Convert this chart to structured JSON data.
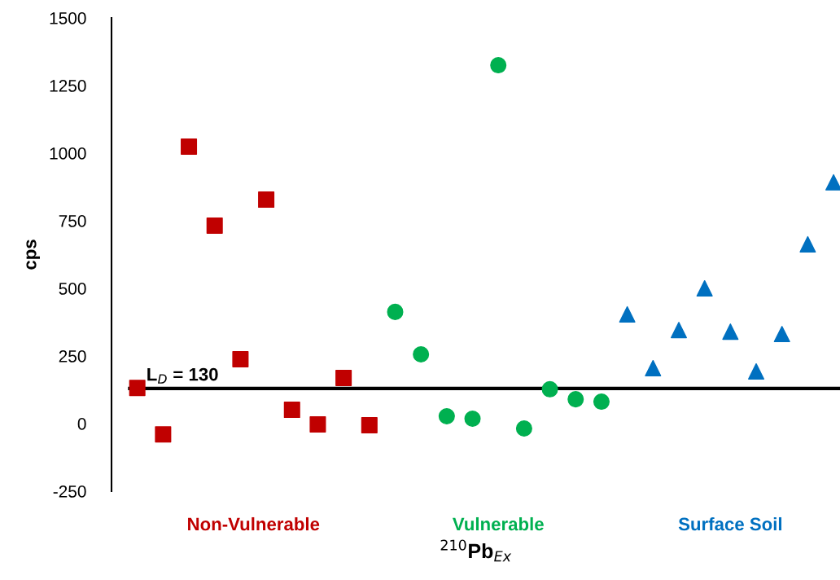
{
  "chart_data": {
    "type": "scatter",
    "xlabel": "$^{210}$Pb$_{Ex}$",
    "ylabel": "cps",
    "categories": [
      null,
      null,
      null,
      null,
      null,
      null,
      null,
      null,
      null,
      null,
      null,
      null,
      null,
      null,
      null,
      null,
      null,
      null,
      null,
      null,
      null,
      null,
      null,
      null,
      null,
      null,
      null,
      null
    ],
    "series": [
      {
        "name": "Non-Vulnerable",
        "color": "#c00000",
        "marker": "square",
        "values": [
          132,
          -40,
          1024,
          732,
          238,
          828,
          51,
          -3,
          169,
          -6,
          null,
          null,
          null,
          null,
          null,
          null,
          null,
          null,
          null,
          null,
          null,
          null,
          null,
          null,
          null,
          null,
          null,
          null
        ]
      },
      {
        "name": "Vulnerable",
        "color": "#00b050",
        "marker": "circle",
        "values": [
          null,
          null,
          null,
          null,
          null,
          null,
          null,
          null,
          null,
          null,
          413,
          256,
          27,
          18,
          1325,
          -18,
          127,
          90,
          81,
          null,
          null,
          null,
          null,
          null,
          null,
          null,
          null,
          null
        ]
      },
      {
        "name": "Surface Soil",
        "color": "#0070c0",
        "marker": "triangle",
        "values": [
          null,
          null,
          null,
          null,
          null,
          null,
          null,
          null,
          null,
          null,
          null,
          null,
          null,
          null,
          null,
          null,
          null,
          null,
          null,
          404,
          205,
          346,
          500,
          340,
          193,
          331,
          663,
          892
        ]
      }
    ],
    "ylim": [
      -250,
      1500
    ],
    "yticks": [
      -250,
      0,
      250,
      500,
      750,
      1000,
      1250,
      1500
    ],
    "ref_lines": [
      {
        "axis": "y",
        "value": 130,
        "label": "L$_{D}$ = 130",
        "color": "#000000"
      }
    ],
    "grid": false,
    "legend": false
  }
}
